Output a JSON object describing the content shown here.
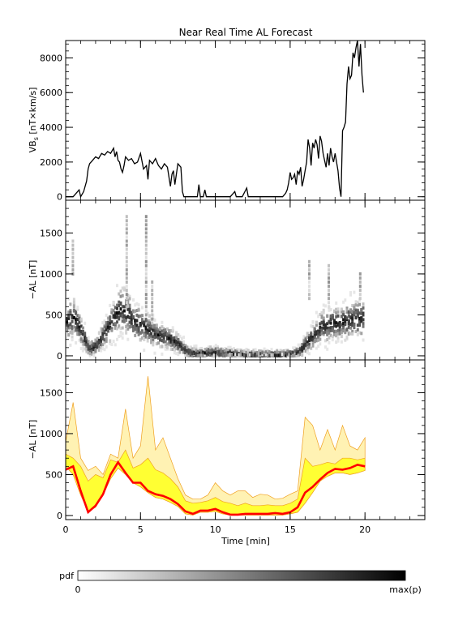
{
  "title": "Near Real Time AL Forecast",
  "colors": {
    "red_line": "#ff0000",
    "yellow_band": "#ffff33",
    "light_band": "#fff2b3",
    "orange_lines": "#f0a020"
  },
  "colorbar": {
    "label": "pdf",
    "min_label": "0",
    "max_label": "max(p)"
  },
  "chart_data": [
    {
      "type": "line",
      "panel": "top",
      "ylabel_main": "VB",
      "ylabel_sub": "s",
      "ylabel_rest": " [nT×km/s]",
      "xlim": [
        0,
        24
      ],
      "ylim": [
        -200,
        9000
      ],
      "yticks": [
        0,
        2000,
        4000,
        6000,
        8000
      ],
      "grid": false,
      "series": [
        {
          "x": [
            0,
            0.5,
            0.7,
            0.9,
            1.0,
            1.2,
            1.4,
            1.5,
            1.6,
            1.8,
            2.0,
            2.2,
            2.4,
            2.6,
            2.8,
            3.0,
            3.2,
            3.3,
            3.4,
            3.5,
            3.6,
            3.7,
            3.8,
            3.9,
            4.0,
            4.2,
            4.4,
            4.6,
            4.8,
            5.0,
            5.2,
            5.4,
            5.5,
            5.6,
            5.8,
            6.0,
            6.2,
            6.4,
            6.6,
            6.8,
            7.0,
            7.1,
            7.2,
            7.3,
            7.5,
            7.6,
            7.7,
            7.8,
            7.9,
            8.0,
            8.5,
            8.8,
            8.9,
            9.0,
            9.2,
            9.3,
            9.4,
            9.6,
            10.0,
            11.0,
            11.3,
            11.4,
            11.5,
            11.8,
            12.1,
            12.2,
            12.3,
            12.5,
            13.0,
            14.0,
            14.5,
            14.7,
            14.8,
            14.9,
            15.0,
            15.1,
            15.2,
            15.3,
            15.4,
            15.5,
            15.6,
            15.7,
            15.8,
            15.9,
            16.0,
            16.1,
            16.2,
            16.3,
            16.4,
            16.5,
            16.6,
            16.7,
            16.8,
            16.9,
            17.0,
            17.1,
            17.2,
            17.3,
            17.4,
            17.5,
            17.6,
            17.7,
            17.8,
            17.9,
            18.0,
            18.1,
            18.2,
            18.3,
            18.4,
            18.5,
            18.6,
            18.7,
            18.8,
            18.9,
            19.0,
            19.1,
            19.2,
            19.3,
            19.4,
            19.5,
            19.6,
            19.7,
            19.8,
            19.9
          ],
          "values": [
            0,
            0,
            200,
            400,
            0,
            300,
            900,
            1600,
            1900,
            2100,
            2300,
            2200,
            2500,
            2400,
            2600,
            2500,
            2800,
            2300,
            2600,
            2100,
            2000,
            1600,
            1400,
            1800,
            2300,
            2100,
            2200,
            1900,
            2000,
            2500,
            1600,
            1800,
            1000,
            2100,
            1900,
            2200,
            1800,
            1600,
            1900,
            1700,
            600,
            1300,
            1500,
            700,
            1900,
            1800,
            1700,
            300,
            0,
            0,
            0,
            0,
            700,
            0,
            0,
            400,
            0,
            0,
            0,
            0,
            300,
            0,
            0,
            0,
            500,
            0,
            0,
            0,
            0,
            0,
            0,
            200,
            400,
            800,
            1400,
            1000,
            1100,
            1300,
            700,
            1500,
            1300,
            1700,
            600,
            1000,
            1500,
            2000,
            3300,
            2800,
            1800,
            3100,
            2800,
            3300,
            3000,
            2200,
            3500,
            3200,
            2500,
            2100,
            1700,
            2500,
            1800,
            2800,
            2300,
            2000,
            2500,
            2000,
            1500,
            500,
            0,
            3800,
            4000,
            4300,
            6500,
            7500,
            6800,
            7000,
            8300,
            8000,
            8600,
            9000,
            7500,
            8800,
            7000,
            6000
          ]
        }
      ]
    },
    {
      "type": "heatmap",
      "panel": "middle",
      "ylabel": "−AL [nT]",
      "xlim": [
        0,
        24
      ],
      "ylim": [
        -50,
        1900
      ],
      "yticks": [
        0,
        500,
        1000,
        1500
      ],
      "colorscale": [
        "#ffffff",
        "#000000"
      ],
      "center_line": {
        "x": [
          0,
          0.5,
          1.0,
          1.5,
          2.0,
          2.5,
          3.0,
          3.5,
          4.0,
          4.5,
          5.0,
          5.5,
          6.0,
          6.5,
          7.0,
          7.5,
          8.0,
          8.5,
          9.0,
          9.5,
          10.0,
          10.5,
          11.0,
          11.5,
          12.0,
          12.5,
          13.0,
          13.5,
          14.0,
          14.5,
          15.0,
          15.5,
          16.0,
          16.5,
          17.0,
          17.5,
          18.0,
          18.5,
          19.0,
          19.5,
          20.0
        ],
        "values": [
          420,
          470,
          300,
          80,
          120,
          260,
          420,
          560,
          540,
          420,
          380,
          320,
          250,
          240,
          200,
          140,
          60,
          30,
          30,
          40,
          40,
          30,
          30,
          15,
          10,
          10,
          10,
          10,
          10,
          10,
          20,
          40,
          150,
          250,
          350,
          380,
          400,
          420,
          440,
          460,
          470
        ]
      },
      "spikes": [
        {
          "x": 0.4,
          "range": [
            1000,
            1400
          ]
        },
        {
          "x": 4.0,
          "range": [
            600,
            1700
          ]
        },
        {
          "x": 5.3,
          "range": [
            500,
            1700
          ]
        },
        {
          "x": 5.7,
          "range": [
            400,
            900
          ]
        },
        {
          "x": 16.2,
          "range": [
            700,
            1150
          ]
        },
        {
          "x": 17.5,
          "range": [
            600,
            1100
          ]
        },
        {
          "x": 19.6,
          "range": [
            700,
            1000
          ]
        }
      ]
    },
    {
      "type": "line",
      "panel": "bottom",
      "ylabel": "−AL [nT]",
      "xlabel": "Time [min]",
      "xlim": [
        0,
        24
      ],
      "xticks": [
        0,
        5,
        10,
        15,
        20
      ],
      "ylim": [
        -50,
        1900
      ],
      "yticks": [
        0,
        500,
        1000,
        1500
      ],
      "bands": {
        "x": [
          0,
          0.5,
          1.0,
          1.5,
          2.0,
          2.5,
          3.0,
          3.5,
          4.0,
          4.5,
          5.0,
          5.5,
          6.0,
          6.5,
          7.0,
          7.5,
          8.0,
          8.5,
          9.0,
          9.5,
          10.0,
          10.5,
          11.0,
          11.5,
          12.0,
          12.5,
          13.0,
          13.5,
          14.0,
          14.5,
          15.0,
          15.5,
          16.0,
          16.5,
          17.0,
          17.5,
          18.0,
          18.5,
          19.0,
          19.5,
          20.0
        ],
        "outer_upper": [
          900,
          1380,
          700,
          550,
          600,
          500,
          750,
          700,
          1300,
          700,
          850,
          1700,
          800,
          950,
          700,
          450,
          250,
          200,
          200,
          250,
          400,
          300,
          250,
          300,
          300,
          220,
          260,
          250,
          200,
          210,
          260,
          300,
          1200,
          1100,
          800,
          1050,
          800,
          1100,
          850,
          800,
          950
        ],
        "inner_upper": [
          750,
          700,
          600,
          420,
          500,
          460,
          680,
          650,
          800,
          580,
          620,
          700,
          560,
          520,
          450,
          350,
          180,
          150,
          160,
          180,
          220,
          170,
          150,
          120,
          150,
          120,
          120,
          130,
          120,
          120,
          150,
          200,
          700,
          600,
          620,
          650,
          630,
          700,
          700,
          680,
          700
        ],
        "inner_lower": [
          600,
          500,
          250,
          50,
          100,
          250,
          450,
          580,
          500,
          400,
          350,
          280,
          220,
          200,
          160,
          110,
          20,
          5,
          40,
          40,
          50,
          20,
          5,
          5,
          5,
          5,
          5,
          5,
          5,
          5,
          20,
          40,
          150,
          280,
          420,
          480,
          520,
          520,
          500,
          520,
          550
        ]
      },
      "series": [
        {
          "name": "",
          "x": [
            0,
            0.5,
            1.0,
            1.5,
            2.0,
            2.5,
            3.0,
            3.5,
            4.0,
            4.5,
            5.0,
            5.5,
            6.0,
            6.5,
            7.0,
            7.5,
            8.0,
            8.5,
            9.0,
            9.5,
            10.0,
            10.5,
            11.0,
            11.5,
            12.0,
            12.5,
            13.0,
            13.5,
            14.0,
            14.5,
            15.0,
            15.5,
            16.0,
            16.5,
            17.0,
            17.5,
            18.0,
            18.5,
            19.0,
            19.5,
            20.0
          ],
          "values": [
            560,
            600,
            300,
            40,
            120,
            260,
            500,
            650,
            520,
            400,
            400,
            300,
            260,
            240,
            200,
            140,
            50,
            20,
            60,
            60,
            80,
            40,
            10,
            10,
            20,
            20,
            20,
            20,
            30,
            20,
            40,
            100,
            280,
            350,
            440,
            520,
            570,
            560,
            580,
            620,
            600
          ]
        }
      ]
    }
  ]
}
